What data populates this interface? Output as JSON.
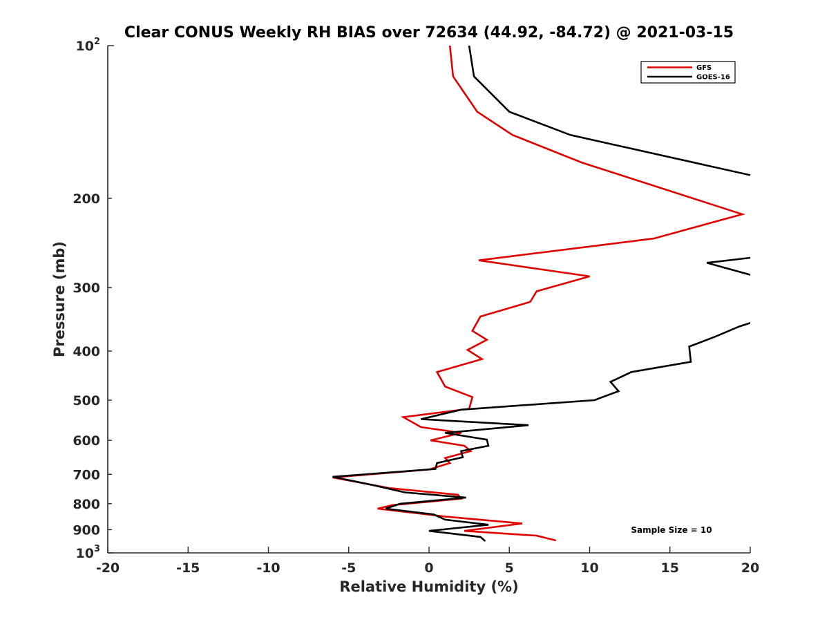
{
  "chart_data": {
    "type": "line",
    "title": "Clear CONUS Weekly RH BIAS over 72634 (44.92, -84.72) @ 2021-03-15",
    "xlabel": "Relative Humidity (%)",
    "ylabel": "Pressure (mb)",
    "xlim": [
      -20,
      20
    ],
    "ylim": [
      100,
      1000
    ],
    "yscale": "log",
    "y_reversed": true,
    "grid": false,
    "legend_position": "top-right",
    "x_ticks": [
      {
        "value": -20,
        "label": "-20"
      },
      {
        "value": -15,
        "label": "-15"
      },
      {
        "value": -10,
        "label": "-10"
      },
      {
        "value": -5,
        "label": "-5"
      },
      {
        "value": 0,
        "label": "0"
      },
      {
        "value": 5,
        "label": "5"
      },
      {
        "value": 10,
        "label": "10"
      },
      {
        "value": 15,
        "label": "15"
      },
      {
        "value": 20,
        "label": "20"
      }
    ],
    "y_ticks": [
      {
        "value": 100,
        "label": "10",
        "exp": "2"
      },
      {
        "value": 200,
        "label": "200"
      },
      {
        "value": 300,
        "label": "300"
      },
      {
        "value": 400,
        "label": "400"
      },
      {
        "value": 500,
        "label": "500"
      },
      {
        "value": 600,
        "label": "600"
      },
      {
        "value": 700,
        "label": "700"
      },
      {
        "value": 800,
        "label": "800"
      },
      {
        "value": 900,
        "label": "900"
      },
      {
        "value": 1000,
        "label": "10",
        "exp": "3"
      }
    ],
    "series": [
      {
        "name": "GFS",
        "color": "#e00000",
        "points": [
          [
            1.3,
            100
          ],
          [
            1.5,
            115
          ],
          [
            3.0,
            135
          ],
          [
            5.2,
            150
          ],
          [
            9.5,
            170
          ],
          [
            19.5,
            215
          ],
          [
            14.0,
            240
          ],
          [
            3.1,
            265
          ],
          [
            10.0,
            285
          ],
          [
            6.7,
            305
          ],
          [
            6.3,
            320
          ],
          [
            3.2,
            342
          ],
          [
            2.7,
            365
          ],
          [
            3.6,
            380
          ],
          [
            2.4,
            398
          ],
          [
            3.3,
            415
          ],
          [
            0.5,
            440
          ],
          [
            1.0,
            470
          ],
          [
            2.7,
            493
          ],
          [
            2.5,
            520
          ],
          [
            -1.6,
            540
          ],
          [
            -0.5,
            565
          ],
          [
            2.0,
            580
          ],
          [
            0.1,
            600
          ],
          [
            2.2,
            615
          ],
          [
            2.6,
            630
          ],
          [
            1.0,
            650
          ],
          [
            1.3,
            665
          ],
          [
            0.0,
            685
          ],
          [
            -6.0,
            710
          ],
          [
            -2.5,
            745
          ],
          [
            1.8,
            768
          ],
          [
            2.0,
            782
          ],
          [
            -2.3,
            805
          ],
          [
            -3.2,
            818
          ],
          [
            1.0,
            848
          ],
          [
            5.8,
            875
          ],
          [
            2.2,
            905
          ],
          [
            6.7,
            925
          ],
          [
            7.9,
            945
          ]
        ]
      },
      {
        "name": "GOES-16",
        "color": "#000000",
        "points": [
          [
            2.5,
            100
          ],
          [
            2.8,
            115
          ],
          [
            5.0,
            135
          ],
          [
            8.8,
            150
          ],
          [
            20.0,
            180
          ],
          [
            null,
            null
          ],
          [
            20.0,
            262
          ],
          [
            17.3,
            268
          ],
          [
            20.0,
            283
          ],
          [
            null,
            null
          ],
          [
            20.0,
            352
          ],
          [
            19.3,
            358
          ],
          [
            17.8,
            375
          ],
          [
            16.2,
            392
          ],
          [
            16.3,
            420
          ],
          [
            12.6,
            440
          ],
          [
            11.3,
            460
          ],
          [
            11.8,
            480
          ],
          [
            10.3,
            500
          ],
          [
            2.0,
            522
          ],
          [
            -0.5,
            545
          ],
          [
            6.2,
            560
          ],
          [
            1.0,
            580
          ],
          [
            3.6,
            598
          ],
          [
            3.7,
            615
          ],
          [
            2.0,
            630
          ],
          [
            2.1,
            648
          ],
          [
            0.5,
            665
          ],
          [
            0.4,
            683
          ],
          [
            -6.0,
            708
          ],
          [
            -3.5,
            735
          ],
          [
            -1.5,
            760
          ],
          [
            2.3,
            778
          ],
          [
            -1.8,
            800
          ],
          [
            -2.7,
            818
          ],
          [
            0.3,
            840
          ],
          [
            1.0,
            860
          ],
          [
            3.7,
            880
          ],
          [
            0.0,
            905
          ],
          [
            3.2,
            930
          ],
          [
            3.5,
            948
          ]
        ]
      }
    ],
    "annotation": "Sample Size = 10"
  }
}
